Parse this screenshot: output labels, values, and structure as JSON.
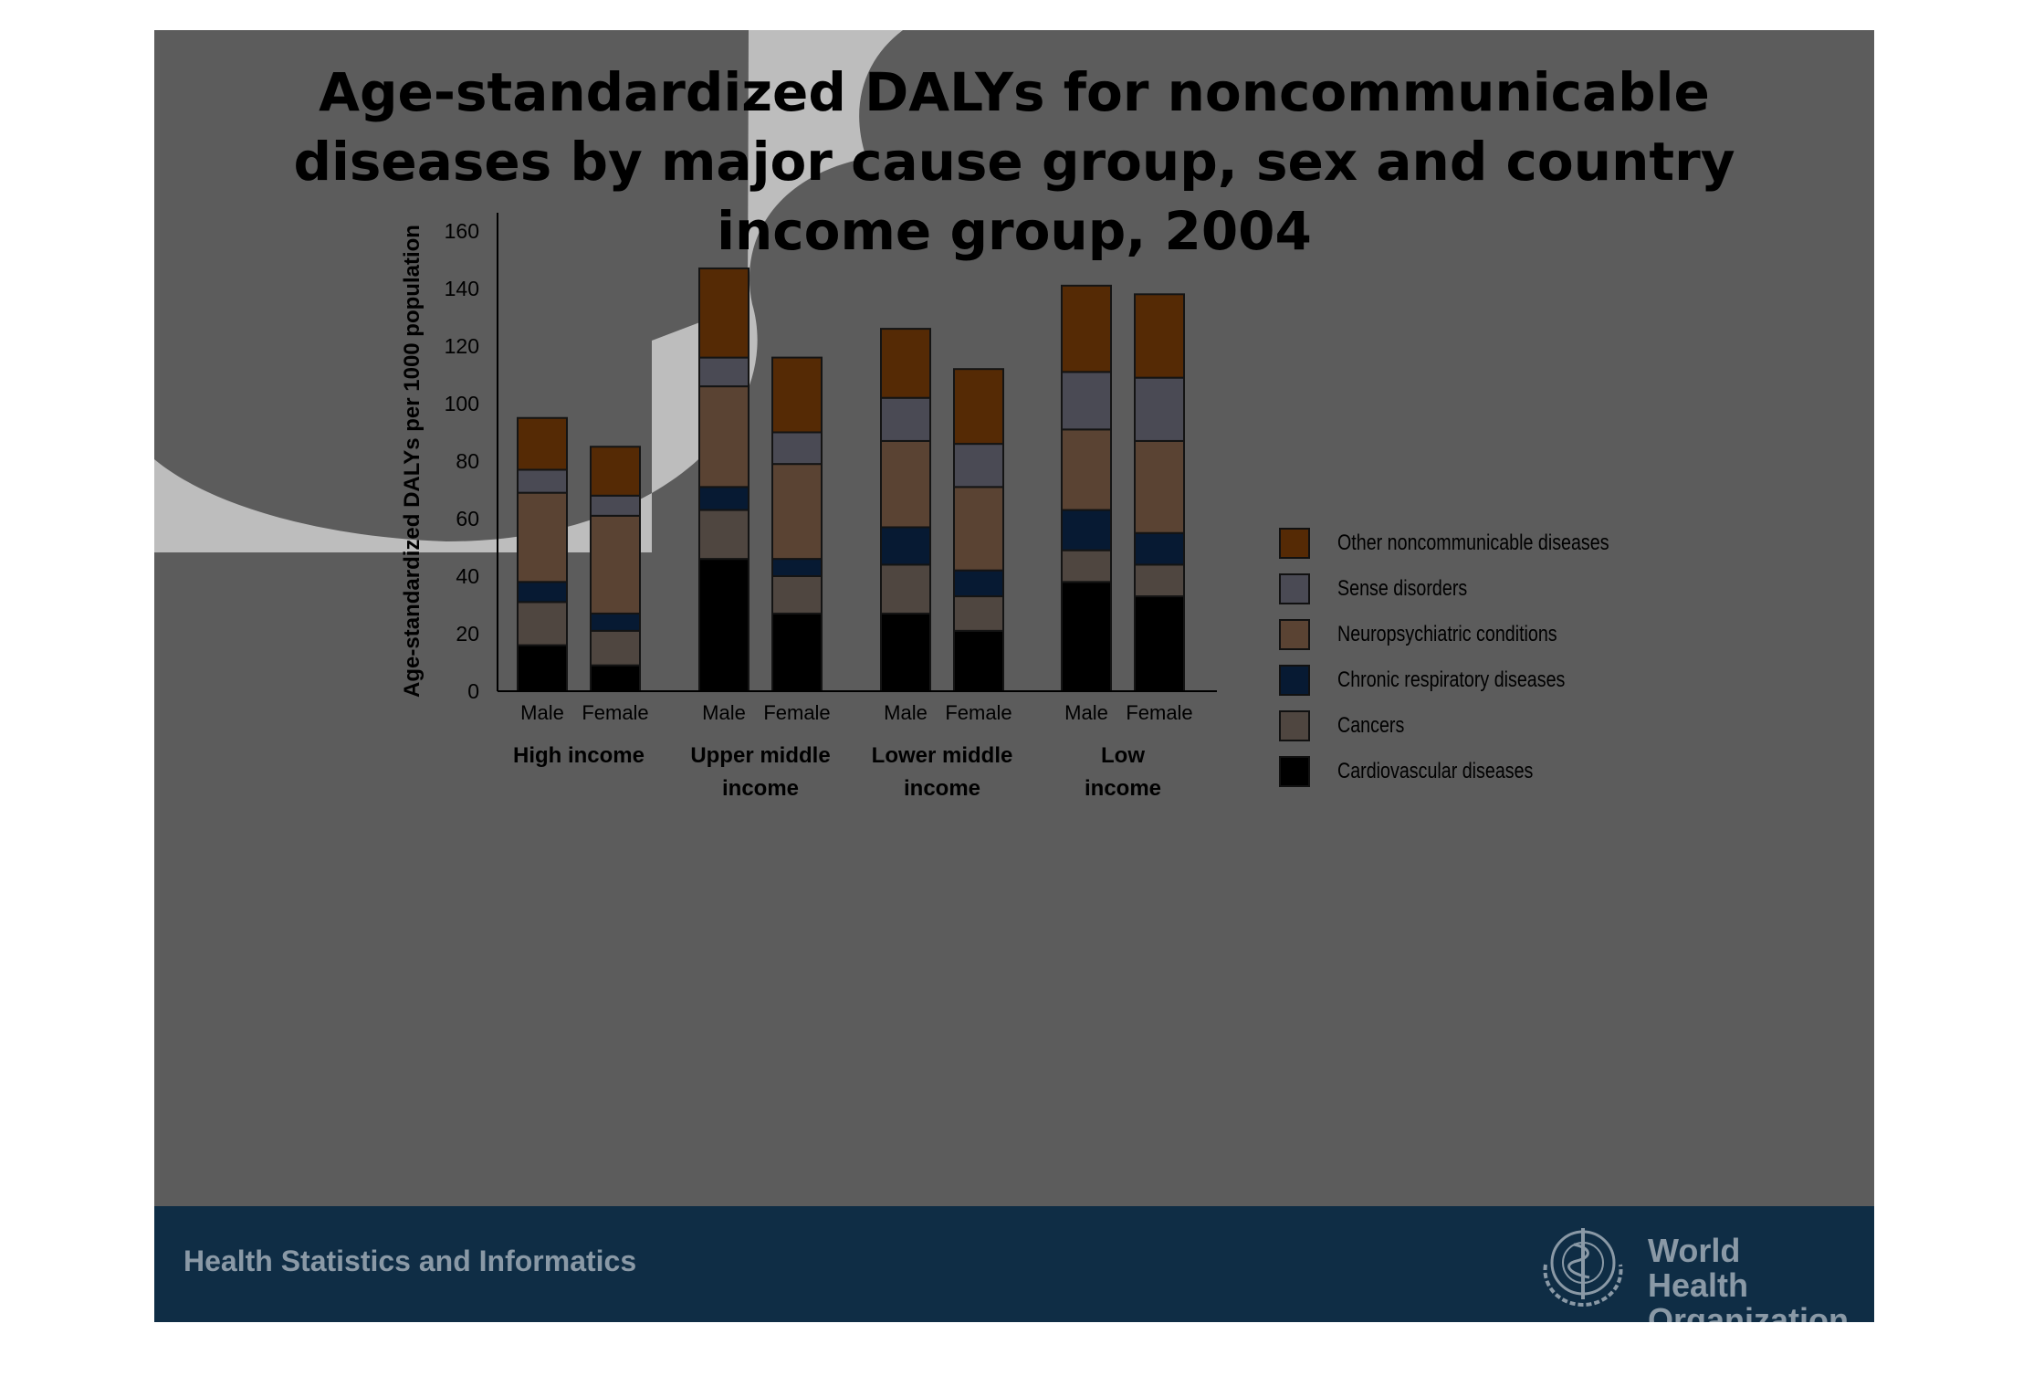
{
  "slide": {
    "title": "Age-standardized DALYs for noncommunicable\ndiseases by major cause group,  sex and country\nincome group, 2004",
    "footer_text": "Health Statistics and Informatics",
    "org_name": "World Health\nOrganization",
    "colors": {
      "slide_background": "#5c5c5c",
      "footer_background": "#0f2d45",
      "footer_text": "#8a99a6"
    }
  },
  "chart_data": {
    "type": "bar",
    "stacked": true,
    "title": "",
    "ylabel": "Age-standardized DALYs per 1000 population",
    "xlabel": "",
    "ylim": [
      0,
      160
    ],
    "yticks": [
      0,
      20,
      40,
      60,
      80,
      100,
      120,
      140,
      160
    ],
    "grid": false,
    "legend_position": "right",
    "groups": [
      {
        "label": "High income",
        "categories": [
          "Male",
          "Female"
        ]
      },
      {
        "label": "Upper middle\nincome",
        "categories": [
          "Male",
          "Female"
        ]
      },
      {
        "label": "Lower middle\nincome",
        "categories": [
          "Male",
          "Female"
        ]
      },
      {
        "label": "Low\nincome",
        "categories": [
          "Male",
          "Female"
        ]
      }
    ],
    "series": [
      {
        "name": "Cardiovascular diseases",
        "color": "#000000",
        "values": [
          16,
          9,
          46,
          27,
          27,
          21,
          38,
          33
        ]
      },
      {
        "name": "Cancers",
        "color": "#4f4640",
        "values": [
          15,
          12,
          17,
          13,
          17,
          12,
          11,
          11
        ]
      },
      {
        "name": "Chronic respiratory diseases",
        "color": "#071a33",
        "values": [
          7,
          6,
          8,
          6,
          13,
          9,
          14,
          11
        ]
      },
      {
        "name": "Neuropsychiatric conditions",
        "color": "#5a4333",
        "values": [
          31,
          34,
          35,
          33,
          30,
          29,
          28,
          32
        ]
      },
      {
        "name": "Sense disorders",
        "color": "#4a4a54",
        "values": [
          8,
          7,
          10,
          11,
          15,
          15,
          20,
          22
        ]
      },
      {
        "name": "Other noncommunicable diseases",
        "color": "#552a05",
        "values": [
          18,
          17,
          31,
          26,
          24,
          26,
          30,
          29
        ]
      }
    ],
    "legend_order": [
      "Other noncommunicable diseases",
      "Sense disorders",
      "Neuropsychiatric conditions",
      "Chronic respiratory diseases",
      "Cancers",
      "Cardiovascular diseases"
    ]
  }
}
